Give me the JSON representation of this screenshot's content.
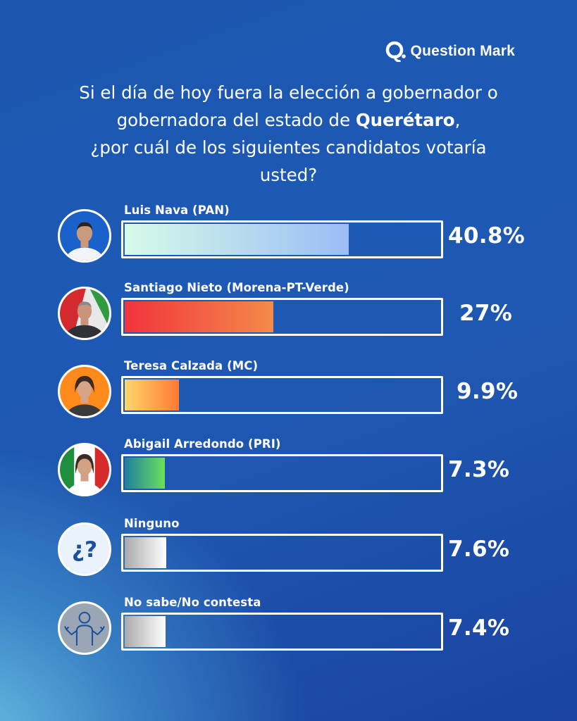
{
  "brand": {
    "name": "Question Mark"
  },
  "question": {
    "line1": "Si el día de hoy fuera la elección a gobernador o",
    "line2_pre": "gobernadora del estado de ",
    "line2_bold": "Querétaro",
    "line2_post": ",",
    "line3": "¿por cuál de los siguientes candidatos votaría",
    "line4": "usted?"
  },
  "chart_data": {
    "type": "bar",
    "orientation": "horizontal",
    "title": "Si el día de hoy fuera la elección a gobernador o gobernadora del estado de Querétaro, ¿por cuál de los siguientes candidatos votaría usted?",
    "unit": "%",
    "xlim": [
      0,
      100
    ],
    "categories": [
      "Luis Nava (PAN)",
      "Santiago Nieto (Morena-PT-Verde)",
      "Teresa Calzada (MC)",
      "Abigail Arredondo (PRI)",
      "Ninguno",
      "No sabe/No contesta"
    ],
    "values": [
      40.8,
      27,
      9.9,
      7.3,
      7.6,
      7.4
    ],
    "value_labels": [
      "40.8%",
      "27%",
      "9.9%",
      "7.3%",
      "7.6%",
      "7.4%"
    ],
    "bars": [
      {
        "name": "Luis Nava (PAN)",
        "value": 40.8,
        "label": "40.8%",
        "gradient": [
          "#d6fbe8",
          "#9bbcf5"
        ],
        "avatar_bg": "#1a62c9",
        "avatar": "photo-candidate"
      },
      {
        "name": "Santiago Nieto (Morena-PT-Verde)",
        "value": 27,
        "label": "27%",
        "gradient": [
          "#f2333b",
          "#f58a4a"
        ],
        "avatar_bg": "#c8232b",
        "avatar": "photo-candidate"
      },
      {
        "name": "Teresa Calzada (MC)",
        "value": 9.9,
        "label": "9.9%",
        "gradient": [
          "#ffd66b",
          "#ff7a32"
        ],
        "avatar_bg": "#ff8a1c",
        "avatar": "photo-candidate"
      },
      {
        "name": "Abigail Arredondo (PRI)",
        "value": 7.3,
        "label": "7.3%",
        "gradient": [
          "#1f7fa0",
          "#6be05a"
        ],
        "avatar_bg": "#ffffff",
        "avatar": "photo-candidate"
      },
      {
        "name": "Ninguno",
        "value": 7.6,
        "label": "7.6%",
        "gradient": [
          "#aaaaaa",
          "#ffffff"
        ],
        "avatar_bg": "#eaf2fb",
        "avatar": "question-icon",
        "avatar_text": "¿?"
      },
      {
        "name": "No sabe/No contesta",
        "value": 7.4,
        "label": "7.4%",
        "gradient": [
          "#aaaaaa",
          "#ffffff"
        ],
        "avatar_bg": "#9aa6b4",
        "avatar": "shrug-icon"
      }
    ]
  }
}
